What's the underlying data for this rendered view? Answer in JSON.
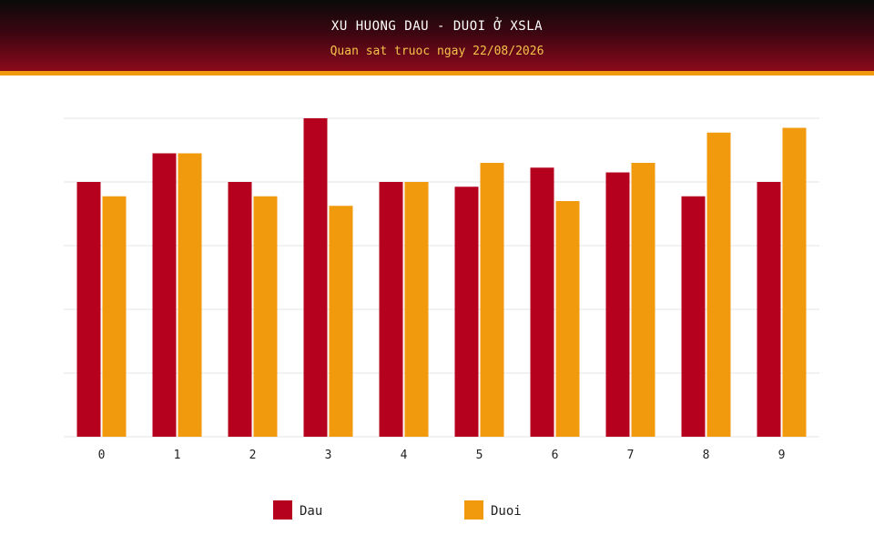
{
  "header": {
    "title": "XU HUONG DAU - DUOI Ở XSLA",
    "subtitle": "Quan sat truoc ngay 22/08/2026"
  },
  "colors": {
    "series_dau": "#b5001e",
    "series_duoi": "#f29a0e",
    "grid": "#e6e6e6"
  },
  "chart_data": {
    "type": "bar",
    "title": "XU HUONG DAU - DUOI Ở XSLA",
    "subtitle": "Quan sat truoc ngay 22/08/2026",
    "categories": [
      "0",
      "1",
      "2",
      "3",
      "4",
      "5",
      "6",
      "7",
      "8",
      "9"
    ],
    "series": [
      {
        "name": "Dau",
        "values": [
          8.0,
          8.9,
          8.0,
          10.0,
          8.0,
          7.85,
          8.45,
          8.3,
          7.55,
          8.0
        ]
      },
      {
        "name": "Duoi",
        "values": [
          7.55,
          8.9,
          7.55,
          7.25,
          8.0,
          8.6,
          7.4,
          8.6,
          9.55,
          9.7
        ]
      }
    ],
    "ylim": [
      0,
      10
    ],
    "grid": true,
    "legend": "bottom-center"
  }
}
